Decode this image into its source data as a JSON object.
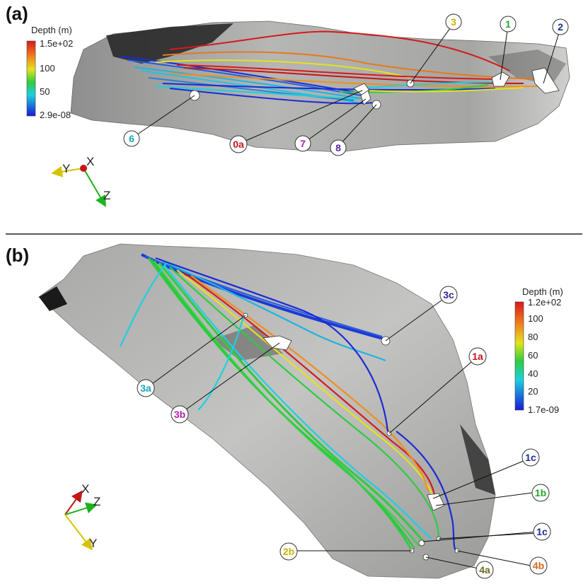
{
  "panel_a": {
    "letter": "(a)",
    "colorbar": {
      "title": "Depth (m)",
      "ticks": [
        "1.5e+02",
        "100",
        "50",
        "2.9e-08"
      ],
      "scale": "red-top to blue-bottom (rainbow)"
    },
    "axes": {
      "y": "Y",
      "x": "X",
      "z": "Z"
    },
    "callouts": [
      {
        "label": "3",
        "color": "#c9b400"
      },
      {
        "label": "1",
        "color": "#22aa22"
      },
      {
        "label": "2",
        "color": "#1a2e8c"
      },
      {
        "label": "6",
        "color": "#17a5b5"
      },
      {
        "label": "0a",
        "color": "#c4141c"
      },
      {
        "label": "7",
        "color": "#b01fb0"
      },
      {
        "label": "8",
        "color": "#5a1fa0"
      }
    ]
  },
  "panel_b": {
    "letter": "(b)",
    "colorbar": {
      "title": "Depth (m)",
      "ticks": [
        "1.2e+02",
        "100",
        "80",
        "60",
        "40",
        "20",
        "1.7e-09"
      ],
      "scale": "red-top to blue-bottom (rainbow)"
    },
    "axes": {
      "x": "X",
      "z": "Z",
      "y": "Y"
    },
    "callouts": [
      {
        "label": "3c",
        "color": "#3b1e99"
      },
      {
        "label": "1a",
        "color": "#c4141c"
      },
      {
        "label": "3a",
        "color": "#17a5b5"
      },
      {
        "label": "3b",
        "color": "#b01fb0"
      },
      {
        "label": "1c",
        "color": "#1a2e8c"
      },
      {
        "label": "1b",
        "color": "#22aa22"
      },
      {
        "label": "1c",
        "color": "#1a2e8c"
      },
      {
        "label": "2b",
        "color": "#c9b400"
      },
      {
        "label": "4a",
        "color": "#6b6b1e"
      },
      {
        "label": "4b",
        "color": "#d2691e"
      }
    ]
  }
}
